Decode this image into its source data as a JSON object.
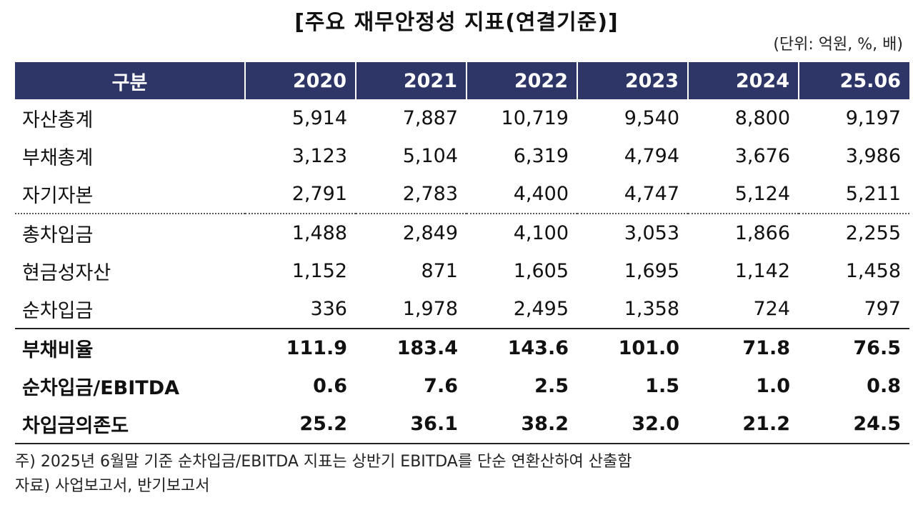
{
  "title": "[주요 재무안정성 지표(연결기준)]",
  "unit": "(단위: 억원, %, 배)",
  "table": {
    "header": [
      "구분",
      "2020",
      "2021",
      "2022",
      "2023",
      "2024",
      "25.06"
    ],
    "rows": [
      {
        "label": "자산총계",
        "values": [
          "5,914",
          "7,887",
          "10,719",
          "9,540",
          "8,800",
          "9,197"
        ]
      },
      {
        "label": "부채총계",
        "values": [
          "3,123",
          "5,104",
          "6,319",
          "4,794",
          "3,676",
          "3,986"
        ]
      },
      {
        "label": "자기자본",
        "values": [
          "2,791",
          "2,783",
          "4,400",
          "4,747",
          "5,124",
          "5,211"
        ]
      },
      {
        "label": "총차입금",
        "values": [
          "1,488",
          "2,849",
          "4,100",
          "3,053",
          "1,866",
          "2,255"
        ]
      },
      {
        "label": "현금성자산",
        "values": [
          "1,152",
          "871",
          "1,605",
          "1,695",
          "1,142",
          "1,458"
        ]
      },
      {
        "label": "순차입금",
        "values": [
          "336",
          "1,978",
          "2,495",
          "1,358",
          "724",
          "797"
        ]
      },
      {
        "label": "부채비율",
        "values": [
          "111.9",
          "183.4",
          "143.6",
          "101.0",
          "71.8",
          "76.5"
        ]
      },
      {
        "label": "순차입금/EBITDA",
        "values": [
          "0.6",
          "7.6",
          "2.5",
          "1.5",
          "1.0",
          "0.8"
        ]
      },
      {
        "label": "차입금의존도",
        "values": [
          "25.2",
          "36.1",
          "38.2",
          "32.0",
          "21.2",
          "24.5"
        ]
      }
    ]
  },
  "notes": {
    "note": "주) 2025년 6월말 기준 순차입금/EBITDA 지표는 상반기 EBITDA를 단순 연환산하여 산출함",
    "source": "자료) 사업보고서, 반기보고서"
  },
  "colors": {
    "header_bg": "#2e3567",
    "header_text": "#ffffff"
  }
}
